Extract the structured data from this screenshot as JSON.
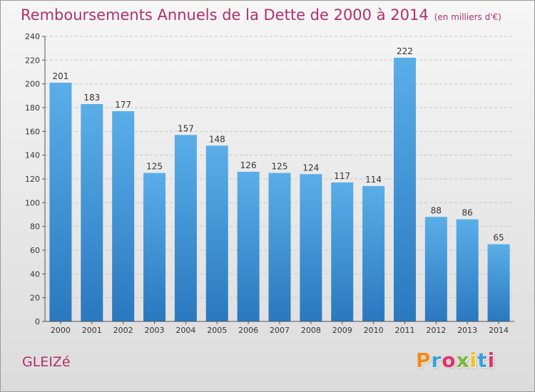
{
  "header": {
    "title": "Remboursements Annuels de la Dette de 2000 à 2014",
    "subtitle": "(en milliers d'€)"
  },
  "footer": {
    "commune": "GLEIZé",
    "logo_text": "Proxiti",
    "logo_colors": [
      "#f08c1c",
      "#3ba0db",
      "#e2336c",
      "#7cb83c",
      "#f5c21a",
      "#3ba0db",
      "#e2336c"
    ]
  },
  "chart_data": {
    "type": "bar",
    "categories": [
      "2000",
      "2001",
      "2002",
      "2003",
      "2004",
      "2005",
      "2006",
      "2007",
      "2008",
      "2009",
      "2010",
      "2011",
      "2012",
      "2013",
      "2014"
    ],
    "values": [
      201,
      183,
      177,
      125,
      157,
      148,
      126,
      125,
      124,
      117,
      114,
      222,
      88,
      86,
      65
    ],
    "title": "Remboursements Annuels de la Dette de 2000 à 2014",
    "subtitle": "(en milliers d'€)",
    "xlabel": "",
    "ylabel": "",
    "ylim": [
      0,
      240
    ],
    "yticks": [
      0,
      20,
      40,
      60,
      80,
      100,
      120,
      140,
      160,
      180,
      200,
      220,
      240
    ],
    "grid": true,
    "bar_color_top": "#5aaee8",
    "bar_color_bottom": "#2a78bf"
  }
}
